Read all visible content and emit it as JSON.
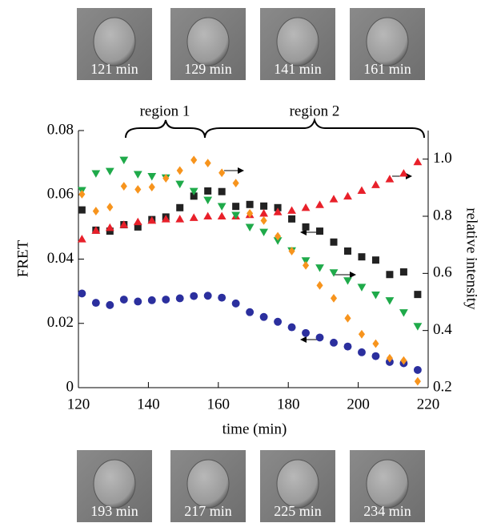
{
  "images": {
    "top": [
      "121 min",
      "129 min",
      "141 min",
      "161 min"
    ],
    "bottom": [
      "193 min",
      "217 min",
      "225 min",
      "234 min"
    ]
  },
  "chart_data": {
    "type": "scatter",
    "xlabel": "time (min)",
    "ylabel": "FRET",
    "y2label": "relative intensity",
    "annotations": [
      "region 1",
      "region 2"
    ],
    "x": [
      121,
      125,
      129,
      133,
      137,
      141,
      145,
      149,
      153,
      157,
      161,
      165,
      169,
      173,
      177,
      181,
      185,
      189,
      193,
      197,
      201,
      205,
      209,
      213,
      217
    ],
    "xlim": [
      120,
      220
    ],
    "xticks": [
      120,
      140,
      160,
      180,
      200,
      220
    ],
    "ylim": [
      0,
      0.08
    ],
    "yticks": [
      0,
      0.02,
      0.04,
      0.06,
      0.08
    ],
    "y2lim": [
      0.2,
      1.1
    ],
    "y2ticks": [
      0.2,
      0.4,
      0.6,
      0.8,
      {
        "value": 1,
        "label": "1.0"
      }
    ],
    "series": [
      {
        "marker": "circle",
        "color": "#2b2f9e",
        "values": [
          0.0293,
          0.0264,
          0.0257,
          0.0274,
          0.0268,
          0.0272,
          0.0274,
          0.0278,
          0.0285,
          0.0286,
          0.028,
          0.0262,
          0.0235,
          0.022,
          0.0205,
          0.0188,
          0.017,
          0.0156,
          0.014,
          0.0128,
          0.011,
          0.0098,
          0.008,
          0.0076,
          0.0055
        ]
      },
      {
        "marker": "square",
        "color": "#222222",
        "values": [
          0.0553,
          0.049,
          0.0487,
          0.0507,
          0.05,
          0.0523,
          0.0531,
          0.056,
          0.0596,
          0.0612,
          0.061,
          0.0564,
          0.057,
          0.0565,
          0.056,
          0.0525,
          0.05,
          0.0487,
          0.0453,
          0.0425,
          0.0407,
          0.0397,
          0.0352,
          0.036,
          0.029
        ]
      },
      {
        "marker": "triangle",
        "color": "#e8202a",
        "axis": "y2",
        "values": [
          0.72,
          0.75,
          0.76,
          0.77,
          0.78,
          0.785,
          0.79,
          0.79,
          0.795,
          0.8,
          0.8,
          0.8,
          0.805,
          0.81,
          0.815,
          0.82,
          0.83,
          0.84,
          0.86,
          0.87,
          0.89,
          0.91,
          0.93,
          0.95,
          0.99
        ]
      },
      {
        "marker": "triangle-down",
        "color": "#1faa4a",
        "axis": "y2",
        "values": [
          0.891,
          0.95,
          0.958,
          0.997,
          0.947,
          0.94,
          0.935,
          0.913,
          0.888,
          0.857,
          0.835,
          0.804,
          0.762,
          0.745,
          0.715,
          0.68,
          0.645,
          0.62,
          0.603,
          0.575,
          0.552,
          0.525,
          0.505,
          0.463,
          0.415
        ]
      },
      {
        "marker": "diamond",
        "color": "#f7941d",
        "axis": "y2",
        "values": [
          0.877,
          0.818,
          0.832,
          0.905,
          0.894,
          0.902,
          0.933,
          0.96,
          0.997,
          0.986,
          0.952,
          0.916,
          0.81,
          0.785,
          0.73,
          0.678,
          0.628,
          0.558,
          0.513,
          0.443,
          0.387,
          0.354,
          0.303,
          0.295,
          0.222
        ]
      }
    ]
  }
}
